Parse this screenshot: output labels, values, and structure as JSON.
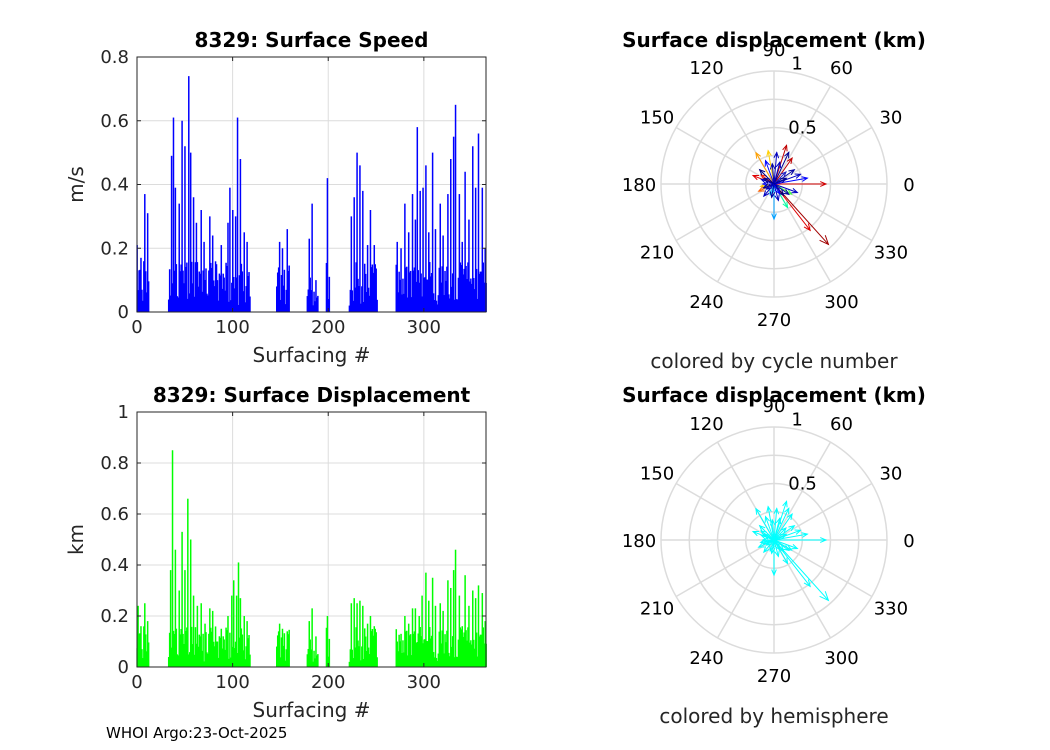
{
  "footer": "WHOI Argo:23-Oct-2025",
  "colors": {
    "speed": "#0000ff",
    "displacement": "#00ff00",
    "hemisphere": "#00ffff",
    "grid": "#dcdcdc",
    "axis": "#262626"
  },
  "chart_data": [
    {
      "id": "speed",
      "type": "bar",
      "title": "8329: Surface Speed",
      "xlabel": "Surfacing #",
      "ylabel": "m/s",
      "xlim": [
        0,
        365
      ],
      "ylim": [
        0,
        0.8
      ],
      "xticks": [
        "0",
        "100",
        "200",
        "300"
      ],
      "yticks": [
        "0",
        "0.2",
        "0.4",
        "0.6",
        "0.8"
      ],
      "peaks": [
        [
          0,
          0.21
        ],
        [
          4,
          0.17
        ],
        [
          8,
          0.37
        ],
        [
          11,
          0.31
        ],
        [
          36,
          0.49
        ],
        [
          38,
          0.61
        ],
        [
          40,
          0.39
        ],
        [
          44,
          0.34
        ],
        [
          47,
          0.6
        ],
        [
          50,
          0.52
        ],
        [
          54,
          0.74
        ],
        [
          56,
          0.5
        ],
        [
          59,
          0.36
        ],
        [
          62,
          0.28
        ],
        [
          67,
          0.32
        ],
        [
          70,
          0.22
        ],
        [
          76,
          0.3
        ],
        [
          79,
          0.24
        ],
        [
          83,
          0.15
        ],
        [
          88,
          0.21
        ],
        [
          95,
          0.28
        ],
        [
          97,
          0.39
        ],
        [
          100,
          0.32
        ],
        [
          103,
          0.3
        ],
        [
          105,
          0.61
        ],
        [
          108,
          0.48
        ],
        [
          112,
          0.25
        ],
        [
          115,
          0.22
        ],
        [
          149,
          0.22
        ],
        [
          152,
          0.2
        ],
        [
          157,
          0.26
        ],
        [
          180,
          0.23
        ],
        [
          183,
          0.34
        ],
        [
          187,
          0.1
        ],
        [
          199,
          0.42
        ],
        [
          224,
          0.3
        ],
        [
          227,
          0.36
        ],
        [
          230,
          0.5
        ],
        [
          233,
          0.46
        ],
        [
          236,
          0.38
        ],
        [
          241,
          0.21
        ],
        [
          244,
          0.32
        ],
        [
          248,
          0.21
        ],
        [
          272,
          0.22
        ],
        [
          276,
          0.2
        ],
        [
          280,
          0.34
        ],
        [
          284,
          0.25
        ],
        [
          288,
          0.37
        ],
        [
          291,
          0.29
        ],
        [
          293,
          0.58
        ],
        [
          296,
          0.38
        ],
        [
          299,
          0.39
        ],
        [
          302,
          0.46
        ],
        [
          305,
          0.25
        ],
        [
          309,
          0.5
        ],
        [
          312,
          0.26
        ],
        [
          317,
          0.34
        ],
        [
          320,
          0.24
        ],
        [
          325,
          0.37
        ],
        [
          328,
          0.48
        ],
        [
          331,
          0.55
        ],
        [
          333,
          0.65
        ],
        [
          337,
          0.37
        ],
        [
          340,
          0.22
        ],
        [
          343,
          0.44
        ],
        [
          347,
          0.29
        ],
        [
          351,
          0.52
        ],
        [
          354,
          0.39
        ],
        [
          357,
          0.56
        ],
        [
          361,
          0.39
        ],
        [
          364,
          0.2
        ]
      ]
    },
    {
      "id": "displacement",
      "type": "bar",
      "title": "8329: Surface Displacement",
      "xlabel": "Surfacing #",
      "ylabel": "km",
      "xlim": [
        0,
        365
      ],
      "ylim": [
        0,
        1
      ],
      "xticks": [
        "0",
        "100",
        "200",
        "300"
      ],
      "yticks": [
        "0",
        "0.2",
        "0.4",
        "0.6",
        "0.8",
        "1"
      ],
      "peaks": [
        [
          1,
          0.24
        ],
        [
          4,
          0.16
        ],
        [
          8,
          0.25
        ],
        [
          11,
          0.18
        ],
        [
          35,
          0.38
        ],
        [
          37,
          0.85
        ],
        [
          40,
          0.46
        ],
        [
          44,
          0.3
        ],
        [
          47,
          0.53
        ],
        [
          50,
          0.38
        ],
        [
          53,
          0.66
        ],
        [
          56,
          0.5
        ],
        [
          59,
          0.28
        ],
        [
          63,
          0.24
        ],
        [
          67,
          0.25
        ],
        [
          71,
          0.17
        ],
        [
          76,
          0.23
        ],
        [
          79,
          0.22
        ],
        [
          83,
          0.1
        ],
        [
          88,
          0.15
        ],
        [
          95,
          0.2
        ],
        [
          99,
          0.28
        ],
        [
          101,
          0.34
        ],
        [
          104,
          0.28
        ],
        [
          106,
          0.41
        ],
        [
          108,
          0.27
        ],
        [
          112,
          0.2
        ],
        [
          115,
          0.18
        ],
        [
          149,
          0.17
        ],
        [
          152,
          0.15
        ],
        [
          157,
          0.14
        ],
        [
          180,
          0.18
        ],
        [
          183,
          0.23
        ],
        [
          187,
          0.12
        ],
        [
          199,
          0.2
        ],
        [
          224,
          0.25
        ],
        [
          227,
          0.27
        ],
        [
          230,
          0.25
        ],
        [
          233,
          0.26
        ],
        [
          236,
          0.24
        ],
        [
          241,
          0.17
        ],
        [
          244,
          0.2
        ],
        [
          248,
          0.16
        ],
        [
          272,
          0.1
        ],
        [
          276,
          0.13
        ],
        [
          280,
          0.2
        ],
        [
          284,
          0.17
        ],
        [
          288,
          0.23
        ],
        [
          291,
          0.23
        ],
        [
          295,
          0.2
        ],
        [
          298,
          0.28
        ],
        [
          302,
          0.37
        ],
        [
          305,
          0.26
        ],
        [
          309,
          0.35
        ],
        [
          312,
          0.24
        ],
        [
          317,
          0.25
        ],
        [
          320,
          0.22
        ],
        [
          325,
          0.34
        ],
        [
          328,
          0.31
        ],
        [
          331,
          0.38
        ],
        [
          333,
          0.46
        ],
        [
          337,
          0.28
        ],
        [
          340,
          0.16
        ],
        [
          343,
          0.36
        ],
        [
          347,
          0.24
        ],
        [
          351,
          0.3
        ],
        [
          354,
          0.27
        ],
        [
          357,
          0.32
        ],
        [
          361,
          0.29
        ],
        [
          364,
          0.18
        ]
      ]
    },
    {
      "id": "compass-cycle",
      "type": "polar-compass",
      "title": "Surface displacement (km)",
      "caption": "colored by cycle number",
      "rmax": 1,
      "rlabels": [
        "0.5",
        "1"
      ],
      "angle_labels": [
        "0",
        "30",
        "60",
        "90",
        "120",
        "150",
        "180",
        "210",
        "240",
        "270",
        "300",
        "330"
      ],
      "arrows": [
        {
          "deg": 0,
          "r": 0.46,
          "color": "#d00000"
        },
        {
          "deg": -48,
          "r": 0.72,
          "color": "#a00000"
        },
        {
          "deg": -52,
          "r": 0.52,
          "color": "#e00000"
        },
        {
          "deg": 72,
          "r": 0.36,
          "color": "#c00000"
        },
        {
          "deg": 55,
          "r": 0.28,
          "color": "#c00000"
        },
        {
          "deg": 158,
          "r": 0.2,
          "color": "#e00000"
        },
        {
          "deg": 145,
          "r": 0.14,
          "color": "#ff2000"
        },
        {
          "deg": 120,
          "r": 0.32,
          "color": "#ffa000"
        },
        {
          "deg": 100,
          "r": 0.3,
          "color": "#ffd000"
        },
        {
          "deg": 190,
          "r": 0.12,
          "color": "#ffd000"
        },
        {
          "deg": 250,
          "r": 0.1,
          "color": "#00c0ff"
        },
        {
          "deg": -90,
          "r": 0.31,
          "color": "#00a0ff"
        },
        {
          "deg": -60,
          "r": 0.24,
          "color": "#00ffa0"
        },
        {
          "deg": -30,
          "r": 0.18,
          "color": "#40ff40"
        },
        {
          "deg": 205,
          "r": 0.15,
          "color": "#ff6000"
        },
        {
          "deg": 180,
          "r": 0.1,
          "color": "#2020ff"
        },
        {
          "deg": 20,
          "r": 0.25,
          "color": "#0000c0"
        },
        {
          "deg": 35,
          "r": 0.22,
          "color": "#0000a0"
        },
        {
          "deg": 65,
          "r": 0.31,
          "color": "#000090"
        },
        {
          "deg": 85,
          "r": 0.28,
          "color": "#0000c0"
        },
        {
          "deg": 110,
          "r": 0.22,
          "color": "#0000ff"
        },
        {
          "deg": 135,
          "r": 0.18,
          "color": "#000080"
        },
        {
          "deg": 160,
          "r": 0.12,
          "color": "#0000c0"
        },
        {
          "deg": 200,
          "r": 0.1,
          "color": "#000090"
        },
        {
          "deg": 230,
          "r": 0.14,
          "color": "#0000c0"
        },
        {
          "deg": 260,
          "r": 0.12,
          "color": "#0000a0"
        },
        {
          "deg": 285,
          "r": 0.15,
          "color": "#0000c0"
        },
        {
          "deg": 310,
          "r": 0.13,
          "color": "#000080"
        },
        {
          "deg": 340,
          "r": 0.22,
          "color": "#0000c0"
        },
        {
          "deg": 10,
          "r": 0.3,
          "color": "#0000ff"
        },
        {
          "deg": 45,
          "r": 0.15,
          "color": "#2020c0"
        },
        {
          "deg": 95,
          "r": 0.18,
          "color": "#0000a0"
        },
        {
          "deg": 150,
          "r": 0.1,
          "color": "#00008b"
        },
        {
          "deg": 215,
          "r": 0.08,
          "color": "#0000c0"
        },
        {
          "deg": 300,
          "r": 0.1,
          "color": "#0000ff"
        },
        {
          "deg": 325,
          "r": 0.16,
          "color": "#0000a0"
        },
        {
          "deg": 75,
          "r": 0.2,
          "color": "#0000c0"
        },
        {
          "deg": 25,
          "r": 0.12,
          "color": "#000090"
        }
      ]
    },
    {
      "id": "compass-hemisphere",
      "type": "polar-compass",
      "title": "Surface displacement (km)",
      "caption": "colored by hemisphere",
      "rmax": 1,
      "rlabels": [
        "0.5",
        "1"
      ],
      "angle_labels": [
        "0",
        "30",
        "60",
        "90",
        "120",
        "150",
        "180",
        "210",
        "240",
        "270",
        "300",
        "330"
      ],
      "arrows": [
        {
          "deg": 0,
          "r": 0.46,
          "color": "#00ffff"
        },
        {
          "deg": -48,
          "r": 0.72,
          "color": "#00ffff"
        },
        {
          "deg": -52,
          "r": 0.52,
          "color": "#00ffff"
        },
        {
          "deg": 72,
          "r": 0.36,
          "color": "#00ffff"
        },
        {
          "deg": 55,
          "r": 0.28,
          "color": "#00ffff"
        },
        {
          "deg": 158,
          "r": 0.2,
          "color": "#00ffff"
        },
        {
          "deg": 145,
          "r": 0.14,
          "color": "#00ffff"
        },
        {
          "deg": 120,
          "r": 0.32,
          "color": "#00ffff"
        },
        {
          "deg": 100,
          "r": 0.3,
          "color": "#00ffff"
        },
        {
          "deg": 190,
          "r": 0.12,
          "color": "#00ffff"
        },
        {
          "deg": 250,
          "r": 0.1,
          "color": "#00ffff"
        },
        {
          "deg": -90,
          "r": 0.31,
          "color": "#00ffff"
        },
        {
          "deg": -60,
          "r": 0.24,
          "color": "#00ffff"
        },
        {
          "deg": -30,
          "r": 0.18,
          "color": "#00ffff"
        },
        {
          "deg": 205,
          "r": 0.15,
          "color": "#00ffff"
        },
        {
          "deg": 180,
          "r": 0.1,
          "color": "#00ffff"
        },
        {
          "deg": 20,
          "r": 0.25,
          "color": "#00ffff"
        },
        {
          "deg": 35,
          "r": 0.22,
          "color": "#00ffff"
        },
        {
          "deg": 65,
          "r": 0.31,
          "color": "#00ffff"
        },
        {
          "deg": 85,
          "r": 0.28,
          "color": "#00ffff"
        },
        {
          "deg": 110,
          "r": 0.22,
          "color": "#00ffff"
        },
        {
          "deg": 135,
          "r": 0.18,
          "color": "#00ffff"
        },
        {
          "deg": 160,
          "r": 0.12,
          "color": "#00ffff"
        },
        {
          "deg": 200,
          "r": 0.1,
          "color": "#00ffff"
        },
        {
          "deg": 230,
          "r": 0.14,
          "color": "#00ffff"
        },
        {
          "deg": 260,
          "r": 0.12,
          "color": "#00ffff"
        },
        {
          "deg": 285,
          "r": 0.15,
          "color": "#00ffff"
        },
        {
          "deg": 310,
          "r": 0.13,
          "color": "#00ffff"
        },
        {
          "deg": 340,
          "r": 0.22,
          "color": "#00ffff"
        },
        {
          "deg": 10,
          "r": 0.3,
          "color": "#00ffff"
        },
        {
          "deg": 45,
          "r": 0.15,
          "color": "#00ffff"
        },
        {
          "deg": 95,
          "r": 0.18,
          "color": "#00ffff"
        },
        {
          "deg": 150,
          "r": 0.1,
          "color": "#00ffff"
        },
        {
          "deg": 215,
          "r": 0.08,
          "color": "#00ffff"
        },
        {
          "deg": 300,
          "r": 0.1,
          "color": "#00ffff"
        },
        {
          "deg": 325,
          "r": 0.16,
          "color": "#00ffff"
        },
        {
          "deg": 75,
          "r": 0.2,
          "color": "#00ffff"
        },
        {
          "deg": 25,
          "r": 0.12,
          "color": "#00ffff"
        }
      ]
    }
  ]
}
